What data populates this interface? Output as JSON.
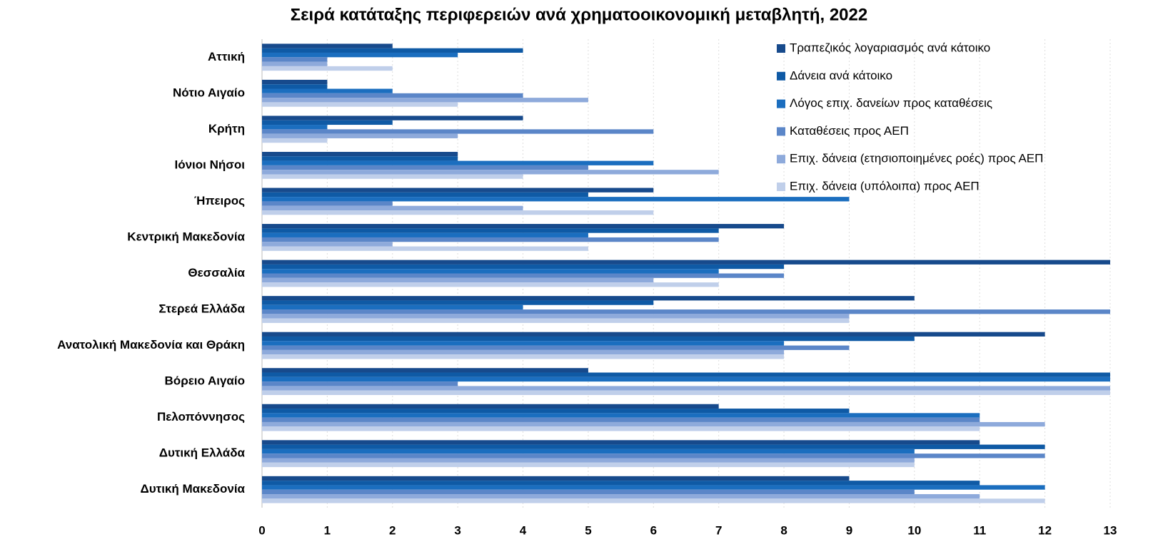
{
  "chart_data": {
    "type": "barh",
    "title": "Σειρά κατάταξης περιφερειών ανά χρηματοοικονομική μεταβλητή, 2022",
    "categories": [
      "Αττική",
      "Νότιο Αιγαίο",
      "Κρήτη",
      "Ιόνιοι Νήσοι",
      "Ήπειρος",
      "Κεντρική Μακεδονία",
      "Θεσσαλία",
      "Στερεά Ελλάδα",
      "Ανατολική Μακεδονία και Θράκη",
      "Βόρειο Αιγαίο",
      "Πελοπόννησος",
      "Δυτική Ελλάδα",
      "Δυτική Μακεδονία"
    ],
    "series": [
      {
        "name": "Τραπεζικός λογαριασμός ανά κάτοικο",
        "color": "#174a8c",
        "values": [
          2,
          1,
          4,
          3,
          6,
          8,
          13,
          10,
          12,
          5,
          7,
          11,
          9
        ]
      },
      {
        "name": "Δάνεια ανά κάτοικο",
        "color": "#0f5aa5",
        "values": [
          4,
          1,
          2,
          3,
          5,
          7,
          8,
          6,
          10,
          13,
          9,
          12,
          11
        ]
      },
      {
        "name": "Λόγος επιχ. δανείων προς καταθέσεις",
        "color": "#1b6ebf",
        "values": [
          3,
          2,
          1,
          6,
          9,
          5,
          7,
          4,
          8,
          13,
          11,
          10,
          12
        ]
      },
      {
        "name": "Καταθέσεις προς ΑΕΠ",
        "color": "#5b86c8",
        "values": [
          1,
          4,
          6,
          5,
          2,
          7,
          8,
          13,
          9,
          3,
          11,
          12,
          10
        ]
      },
      {
        "name": "Επιχ. δάνεια (ετησιοποιημένες ροές) προς ΑΕΠ",
        "color": "#8eaadb",
        "values": [
          1,
          5,
          3,
          7,
          4,
          2,
          6,
          9,
          8,
          13,
          12,
          10,
          11
        ]
      },
      {
        "name": "Επιχ. δάνεια (υπόλοιπα) προς ΑΕΠ",
        "color": "#c0cfea",
        "values": [
          2,
          3,
          1,
          4,
          6,
          5,
          7,
          9,
          8,
          13,
          11,
          10,
          12
        ]
      }
    ],
    "xlim": [
      0,
      13
    ],
    "xticks": [
      0,
      1,
      2,
      3,
      4,
      5,
      6,
      7,
      8,
      9,
      10,
      11,
      12,
      13
    ],
    "grid": true,
    "legend": "top-right"
  }
}
